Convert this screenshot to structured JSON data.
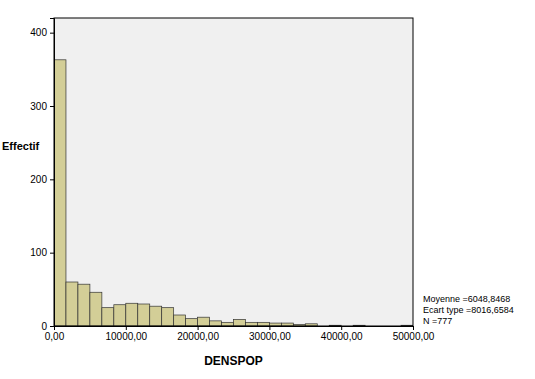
{
  "chart_data": {
    "type": "histogram",
    "x_label": "DENSPOP",
    "y_label": "Effectif",
    "bins": [
      0,
      1666.67,
      3333.33,
      5000,
      6666.67,
      8333.33,
      10000,
      11666.67,
      13333.33,
      15000,
      16666.67,
      18333.33,
      20000,
      21666.67,
      23333.33,
      25000,
      26666.67,
      28333.33,
      30000,
      31666.67,
      33333.33,
      35000,
      36666.67,
      38333.33,
      40000,
      41666.67,
      43333.33,
      45000,
      46666.67,
      48333.33,
      50000
    ],
    "counts": [
      363,
      60,
      57,
      46,
      25,
      29,
      31,
      30,
      27,
      25,
      15,
      10,
      12,
      7,
      5,
      9,
      5,
      5,
      4,
      4,
      2,
      3,
      0,
      1,
      0,
      1,
      0,
      0,
      0,
      1
    ],
    "color": "#d3ce97",
    "xlim": [
      0,
      50000
    ],
    "xticks": [
      {
        "value": 0,
        "label": "0,00"
      },
      {
        "value": 10000,
        "label": "10000,00"
      },
      {
        "value": 20000,
        "label": "20000,00"
      },
      {
        "value": 30000,
        "label": "30000,00"
      },
      {
        "value": 40000,
        "label": "40000,00"
      },
      {
        "value": 50000,
        "label": "50000,00"
      }
    ],
    "ylim": [
      0,
      420
    ],
    "yticks": [
      0,
      100,
      200,
      300,
      400
    ],
    "grid": false,
    "annotations": [
      "Moyenne =6048,8468",
      "Ecart type =8016,6584",
      "N =777"
    ]
  }
}
